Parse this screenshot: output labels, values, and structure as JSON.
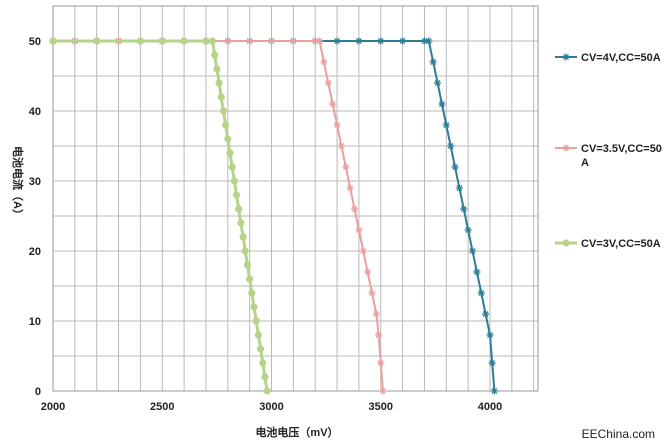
{
  "chart_data": {
    "type": "line",
    "xlabel": "电池电压（mV）",
    "ylabel": "电池电流（A）",
    "xlim": [
      2000,
      4000
    ],
    "ylim": [
      0,
      50
    ],
    "x_ticks": [
      "2000",
      "2500",
      "3000",
      "3500",
      "4000"
    ],
    "y_ticks": [
      "0",
      "10",
      "20",
      "30",
      "40",
      "50"
    ],
    "grid": true,
    "legend_position": "right",
    "series": [
      {
        "name": "CV=4V,CC=50A",
        "color": "#2e7d96",
        "marker": "asterisk",
        "points": [
          [
            2000,
            50
          ],
          [
            2100,
            50
          ],
          [
            2200,
            50
          ],
          [
            2300,
            50
          ],
          [
            2400,
            50
          ],
          [
            2500,
            50
          ],
          [
            2600,
            50
          ],
          [
            2700,
            50
          ],
          [
            2800,
            50
          ],
          [
            2900,
            50
          ],
          [
            3000,
            50
          ],
          [
            3100,
            50
          ],
          [
            3200,
            50
          ],
          [
            3300,
            50
          ],
          [
            3400,
            50
          ],
          [
            3500,
            50
          ],
          [
            3600,
            50
          ],
          [
            3700,
            50
          ],
          [
            3720,
            50
          ],
          [
            3740,
            47
          ],
          [
            3760,
            44
          ],
          [
            3780,
            41
          ],
          [
            3800,
            38
          ],
          [
            3820,
            35
          ],
          [
            3840,
            32
          ],
          [
            3860,
            29
          ],
          [
            3880,
            26
          ],
          [
            3900,
            23
          ],
          [
            3920,
            20
          ],
          [
            3940,
            17
          ],
          [
            3960,
            14
          ],
          [
            3980,
            11
          ],
          [
            4000,
            8
          ],
          [
            4010,
            4
          ],
          [
            4020,
            0
          ]
        ]
      },
      {
        "name": "CV=3.5V,CC=50A",
        "color": "#e8a0a0",
        "marker": "asterisk",
        "points": [
          [
            2000,
            50
          ],
          [
            2100,
            50
          ],
          [
            2200,
            50
          ],
          [
            2300,
            50
          ],
          [
            2400,
            50
          ],
          [
            2500,
            50
          ],
          [
            2600,
            50
          ],
          [
            2700,
            50
          ],
          [
            2800,
            50
          ],
          [
            2900,
            50
          ],
          [
            3000,
            50
          ],
          [
            3100,
            50
          ],
          [
            3200,
            50
          ],
          [
            3220,
            50
          ],
          [
            3240,
            47
          ],
          [
            3260,
            44
          ],
          [
            3280,
            41
          ],
          [
            3300,
            38
          ],
          [
            3320,
            35
          ],
          [
            3340,
            32
          ],
          [
            3360,
            29
          ],
          [
            3380,
            26
          ],
          [
            3400,
            23
          ],
          [
            3420,
            20
          ],
          [
            3440,
            17
          ],
          [
            3460,
            14
          ],
          [
            3480,
            11
          ],
          [
            3490,
            8
          ],
          [
            3500,
            4
          ],
          [
            3510,
            0
          ]
        ]
      },
      {
        "name": "CV=3V,CC=50A",
        "color": "#b5d48a",
        "marker": "circle",
        "points": [
          [
            2000,
            50
          ],
          [
            2200,
            50
          ],
          [
            2400,
            50
          ],
          [
            2500,
            50
          ],
          [
            2600,
            50
          ],
          [
            2700,
            50
          ],
          [
            2730,
            50
          ],
          [
            2740,
            48
          ],
          [
            2750,
            46
          ],
          [
            2760,
            44
          ],
          [
            2770,
            42
          ],
          [
            2780,
            40
          ],
          [
            2790,
            38
          ],
          [
            2800,
            36
          ],
          [
            2810,
            34
          ],
          [
            2820,
            32
          ],
          [
            2830,
            30
          ],
          [
            2840,
            28
          ],
          [
            2850,
            26
          ],
          [
            2860,
            24
          ],
          [
            2870,
            22
          ],
          [
            2880,
            20
          ],
          [
            2890,
            18
          ],
          [
            2900,
            16
          ],
          [
            2910,
            14
          ],
          [
            2920,
            12
          ],
          [
            2930,
            10
          ],
          [
            2940,
            8
          ],
          [
            2950,
            6
          ],
          [
            2960,
            4
          ],
          [
            2970,
            2
          ],
          [
            2980,
            0
          ]
        ]
      }
    ]
  },
  "legend": [
    {
      "line1": "CV=4V,CC=50A",
      "line2": ""
    },
    {
      "line1": "CV=3.5V,CC=50",
      "line2": "A"
    },
    {
      "line1": "CV=3V,CC=50A",
      "line2": ""
    }
  ],
  "watermark": "EEChina.com"
}
